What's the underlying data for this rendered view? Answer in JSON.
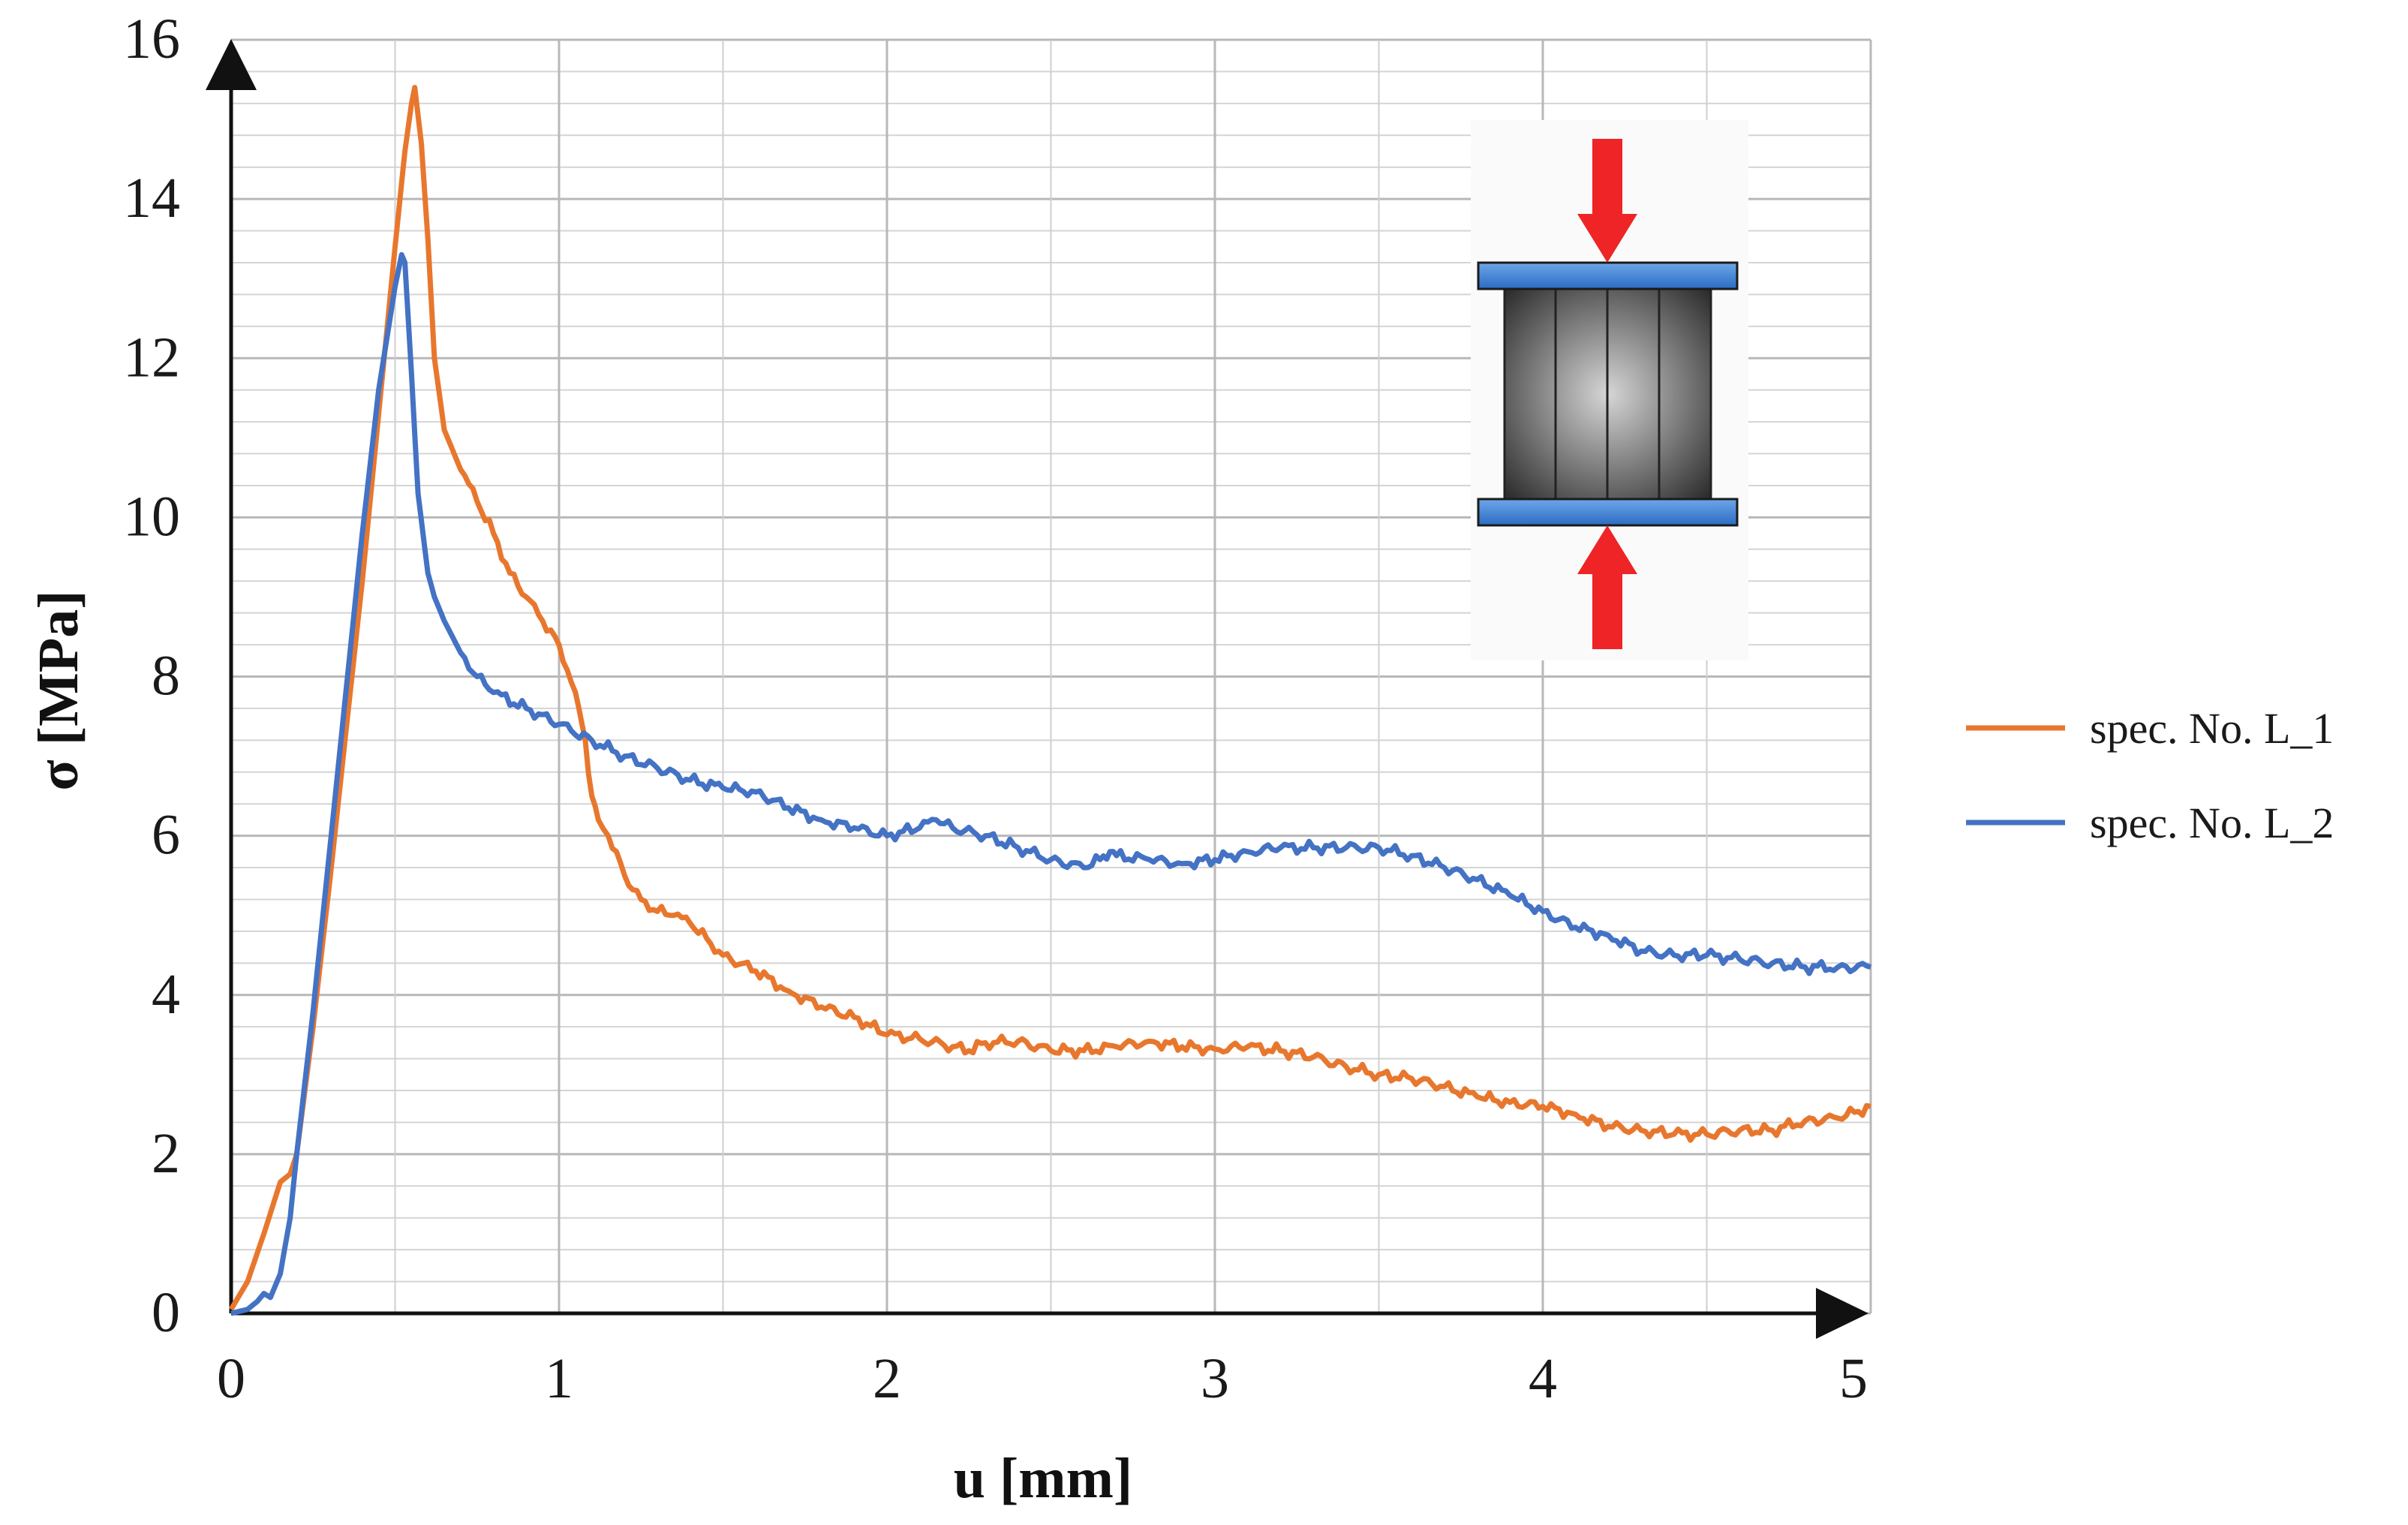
{
  "chart_data": {
    "type": "line",
    "title": "",
    "xlabel": "u [mm]",
    "ylabel": "σ [MPa]",
    "xlim": [
      0,
      5
    ],
    "ylim": [
      0,
      16
    ],
    "x_ticks": [
      "0",
      "1",
      "2",
      "3",
      "4",
      "5"
    ],
    "y_ticks": [
      "0",
      "2",
      "4",
      "6",
      "8",
      "10",
      "12",
      "14",
      "16"
    ],
    "grid": true,
    "legend_position": "right",
    "series": [
      {
        "name": "spec. No. L_1",
        "color": "#e8772e",
        "x": [
          0,
          0.05,
          0.1,
          0.15,
          0.18,
          0.2,
          0.25,
          0.3,
          0.35,
          0.4,
          0.45,
          0.5,
          0.53,
          0.55,
          0.56,
          0.58,
          0.6,
          0.62,
          0.65,
          0.7,
          0.75,
          0.8,
          0.85,
          0.9,
          0.95,
          1.0,
          1.05,
          1.08,
          1.1,
          1.12,
          1.15,
          1.2,
          1.25,
          1.3,
          1.35,
          1.4,
          1.5,
          1.6,
          1.7,
          1.8,
          1.9,
          2.0,
          2.1,
          2.2,
          2.25,
          2.3,
          2.4,
          2.5,
          2.6,
          2.7,
          2.8,
          2.9,
          3.0,
          3.1,
          3.2,
          3.3,
          3.4,
          3.5,
          3.6,
          3.7,
          3.8,
          3.9,
          4.0,
          4.1,
          4.2,
          4.3,
          4.4,
          4.5,
          4.6,
          4.7,
          4.8,
          4.9,
          5.0
        ],
        "values": [
          0.05,
          0.4,
          1.0,
          1.65,
          1.75,
          2.0,
          3.6,
          5.4,
          7.3,
          9.2,
          11.3,
          13.4,
          14.6,
          15.2,
          15.4,
          14.7,
          13.5,
          12.0,
          11.1,
          10.6,
          10.2,
          9.8,
          9.3,
          9.0,
          8.7,
          8.4,
          7.8,
          7.2,
          6.5,
          6.2,
          6.0,
          5.5,
          5.2,
          5.05,
          5.0,
          4.9,
          4.5,
          4.3,
          4.05,
          3.85,
          3.72,
          3.5,
          3.45,
          3.35,
          3.3,
          3.4,
          3.42,
          3.3,
          3.3,
          3.35,
          3.42,
          3.35,
          3.32,
          3.35,
          3.3,
          3.22,
          3.1,
          3.0,
          2.95,
          2.85,
          2.72,
          2.65,
          2.6,
          2.5,
          2.35,
          2.3,
          2.25,
          2.25,
          2.3,
          2.3,
          2.42,
          2.45,
          2.6
        ]
      },
      {
        "name": "spec. No. L_2",
        "color": "#4472c4",
        "x": [
          0,
          0.05,
          0.08,
          0.1,
          0.12,
          0.15,
          0.18,
          0.2,
          0.25,
          0.3,
          0.35,
          0.4,
          0.45,
          0.5,
          0.52,
          0.53,
          0.55,
          0.57,
          0.6,
          0.62,
          0.65,
          0.7,
          0.75,
          0.8,
          0.9,
          1.0,
          1.1,
          1.2,
          1.3,
          1.4,
          1.5,
          1.6,
          1.7,
          1.8,
          1.9,
          2.0,
          2.1,
          2.15,
          2.2,
          2.3,
          2.4,
          2.5,
          2.6,
          2.65,
          2.68,
          2.7,
          2.8,
          2.9,
          3.0,
          3.1,
          3.2,
          3.3,
          3.4,
          3.5,
          3.6,
          3.7,
          3.8,
          3.9,
          4.0,
          4.1,
          4.2,
          4.3,
          4.4,
          4.5,
          4.6,
          4.7,
          4.8,
          4.9,
          5.0
        ],
        "values": [
          0.0,
          0.05,
          0.15,
          0.25,
          0.2,
          0.5,
          1.2,
          2.0,
          3.8,
          5.8,
          7.8,
          9.8,
          11.6,
          12.9,
          13.3,
          13.2,
          11.8,
          10.3,
          9.3,
          9.0,
          8.7,
          8.3,
          8.0,
          7.8,
          7.6,
          7.4,
          7.2,
          7.0,
          6.85,
          6.7,
          6.6,
          6.55,
          6.35,
          6.2,
          6.1,
          6.0,
          6.1,
          6.2,
          6.1,
          6.0,
          5.85,
          5.7,
          5.6,
          5.7,
          5.8,
          5.75,
          5.7,
          5.65,
          5.7,
          5.8,
          5.85,
          5.85,
          5.85,
          5.85,
          5.75,
          5.6,
          5.45,
          5.25,
          5.05,
          4.85,
          4.75,
          4.55,
          4.5,
          4.5,
          4.45,
          4.4,
          4.35,
          4.35,
          4.35
        ]
      }
    ]
  },
  "inset": {
    "icon_name": "compression-specimen-icon",
    "arrow_color": "#ee2427",
    "plate_color": "#3f7fd0",
    "specimen_color": "#8f8f8f"
  },
  "arrow_color": "#111111"
}
